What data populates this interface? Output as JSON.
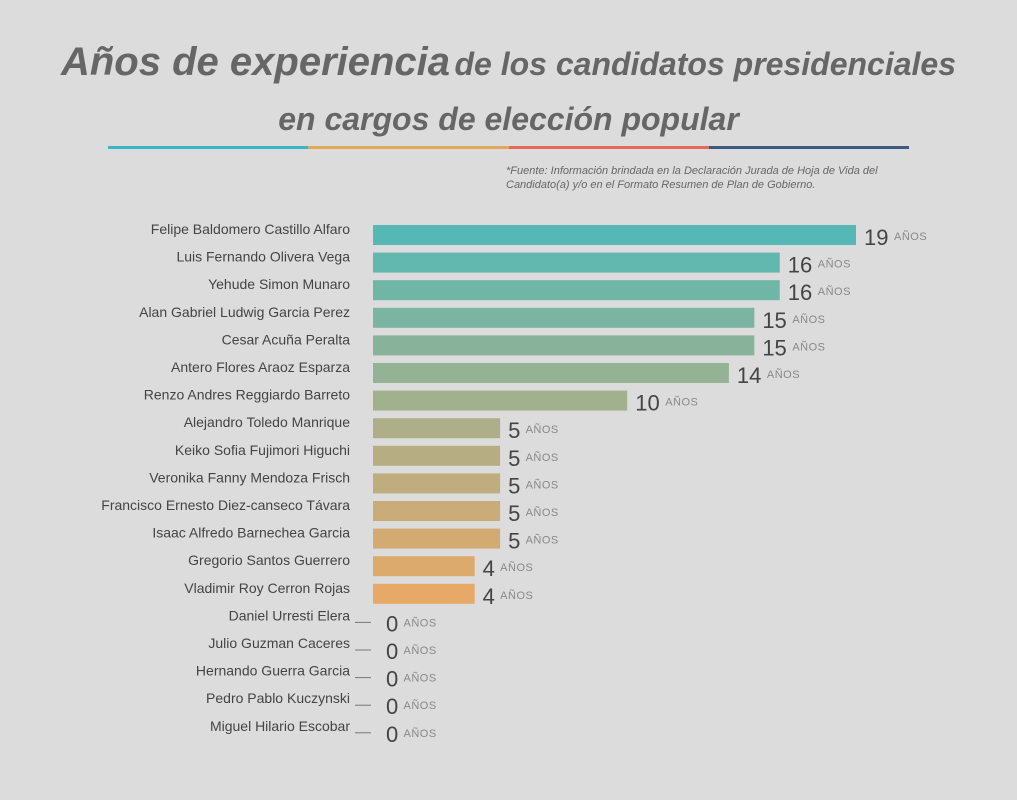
{
  "title": {
    "highlight": "Años de experiencia",
    "rest": "de los candidatos presidenciales",
    "line2": "en cargos de elección popular"
  },
  "source": "*Fuente: Información brindada en la Declaración Jurada de Hoja de Vida del Candidato(a) y/o en el Formato Resumen de Plan de Gobierno.",
  "colors": {
    "divider": [
      "#3fb3c8",
      "#e0a95a",
      "#e56a5c",
      "#3d5a80"
    ],
    "bar_gradient": [
      "#56b8b4",
      "#a7b08a",
      "#e7a968"
    ],
    "zero_line": "#777777"
  },
  "chart_data": {
    "type": "bar",
    "orientation": "horizontal",
    "unit_label": "AÑOS",
    "categories": [
      "Felipe Baldomero Castillo Alfaro",
      "Luis Fernando Olivera Vega",
      "Yehude Simon Munaro",
      "Alan Gabriel Ludwig Garcia Perez",
      "Cesar Acuña Peralta",
      "Antero Flores Araoz Esparza",
      "Renzo Andres Reggiardo Barreto",
      "Alejandro Toledo Manrique",
      "Keiko Sofia Fujimori Higuchi",
      "Veronika Fanny Mendoza Frisch",
      "Francisco Ernesto Diez-canseco Távara",
      "Isaac Alfredo Barnechea Garcia",
      "Gregorio Santos Guerrero",
      "Vladimir Roy Cerron Rojas",
      "Daniel Urresti Elera",
      "Julio Guzman Caceres",
      "Hernando Guerra Garcia",
      "Pedro Pablo Kuczynski",
      "Miguel Hilario Escobar"
    ],
    "values": [
      19,
      16,
      16,
      15,
      15,
      14,
      10,
      5,
      5,
      5,
      5,
      5,
      4,
      4,
      0,
      0,
      0,
      0,
      0
    ],
    "xlim": [
      0,
      19
    ]
  }
}
